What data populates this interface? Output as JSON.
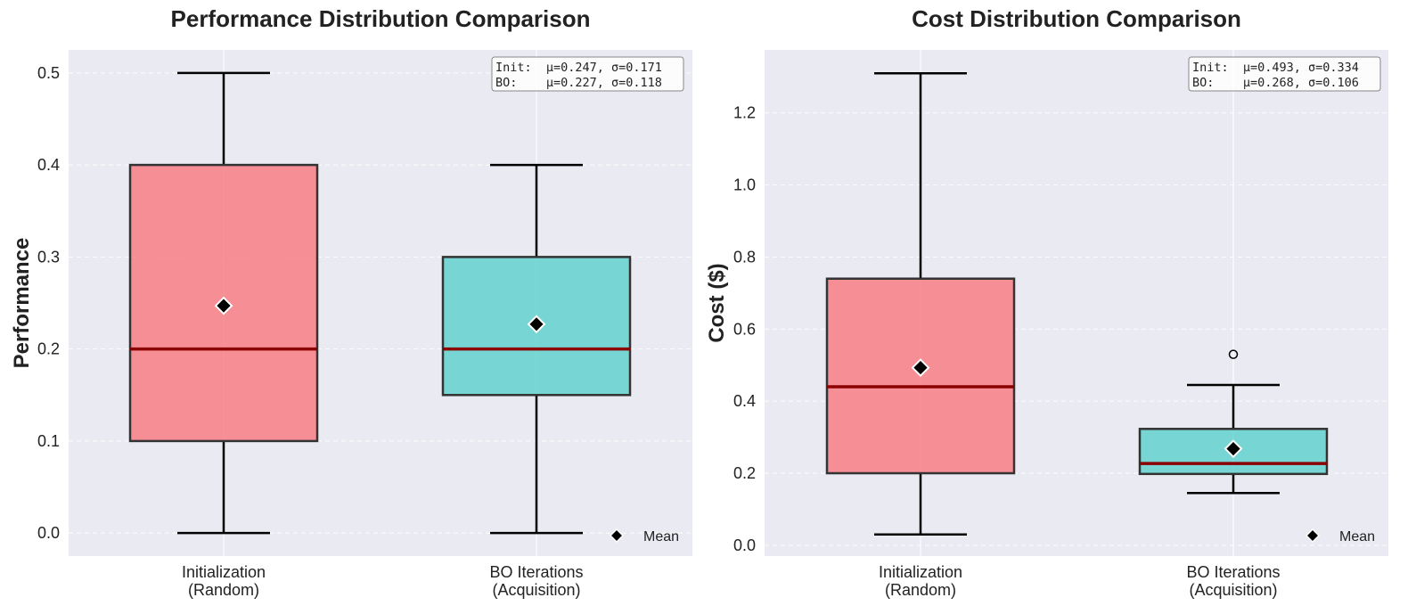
{
  "legend_label": "Mean",
  "colors": {
    "plot_bg": "#eaeaf2",
    "grid": "#ffffff",
    "init_box": "#f8777d",
    "bo_box": "#5ad0cb",
    "median": "#8b0000",
    "whisker": "#000000",
    "text": "#222222"
  },
  "chart_data": [
    {
      "type": "box",
      "title": "Performance Distribution Comparison",
      "ylabel": "Performance",
      "xlabel": "",
      "ylim": [
        -0.025,
        0.525
      ],
      "yticks": [
        0.0,
        0.1,
        0.2,
        0.3,
        0.4,
        0.5
      ],
      "ytick_labels": [
        "0.0",
        "0.1",
        "0.2",
        "0.3",
        "0.4",
        "0.5"
      ],
      "categories": [
        [
          "Initialization",
          "(Random)"
        ],
        [
          "BO Iterations",
          "(Acquisition)"
        ]
      ],
      "boxes": [
        {
          "whisker_low": 0.0,
          "q1": 0.1,
          "median": 0.2,
          "q3": 0.4,
          "whisker_high": 0.5,
          "mean": 0.247,
          "outliers": []
        },
        {
          "whisker_low": 0.0,
          "q1": 0.15,
          "median": 0.2,
          "q3": 0.3,
          "whisker_high": 0.4,
          "mean": 0.227,
          "outliers": []
        }
      ],
      "stats_lines": [
        "Init:  μ=0.247, σ=0.171",
        "BO:    μ=0.227, σ=0.118"
      ],
      "legend_position": "lower-right"
    },
    {
      "type": "box",
      "title": "Cost Distribution Comparison",
      "ylabel": "Cost ($)",
      "xlabel": "",
      "ylim": [
        -0.03,
        1.375
      ],
      "yticks": [
        0.0,
        0.2,
        0.4,
        0.6,
        0.8,
        1.0,
        1.2
      ],
      "ytick_labels": [
        "0.0",
        "0.2",
        "0.4",
        "0.6",
        "0.8",
        "1.0",
        "1.2"
      ],
      "categories": [
        [
          "Initialization",
          "(Random)"
        ],
        [
          "BO Iterations",
          "(Acquisition)"
        ]
      ],
      "boxes": [
        {
          "whisker_low": 0.03,
          "q1": 0.2,
          "median": 0.44,
          "q3": 0.74,
          "whisker_high": 1.31,
          "mean": 0.493,
          "outliers": []
        },
        {
          "whisker_low": 0.145,
          "q1": 0.198,
          "median": 0.227,
          "q3": 0.323,
          "whisker_high": 0.445,
          "mean": 0.268,
          "outliers": [
            0.53
          ]
        }
      ],
      "stats_lines": [
        "Init:  μ=0.493, σ=0.334",
        "BO:    μ=0.268, σ=0.106"
      ],
      "legend_position": "lower-right"
    }
  ]
}
